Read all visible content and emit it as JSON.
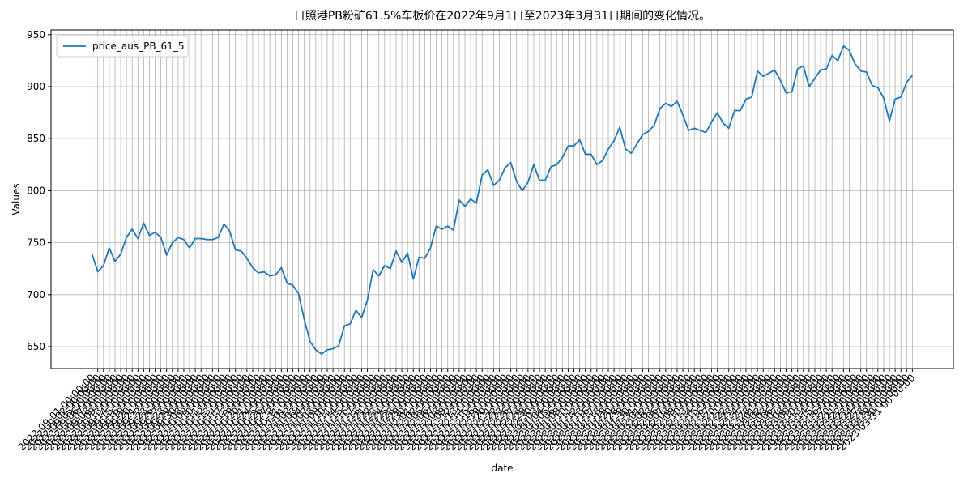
{
  "chart_data": {
    "type": "line",
    "title": "日照港PB粉矿61.5%车板价在2022年9月1日至2023年3月31日期间的变化情况。",
    "xlabel": "date",
    "ylabel": "Values",
    "categories": [
      "2022-09-01 00:00:00",
      "2022-09-02 00:00:00",
      "2022-09-05 00:00:00",
      "2022-09-06 00:00:00",
      "2022-09-07 00:00:00",
      "2022-09-08 00:00:00",
      "2022-09-09 00:00:00",
      "2022-09-13 00:00:00",
      "2022-09-14 00:00:00",
      "2022-09-15 00:00:00",
      "2022-09-16 00:00:00",
      "2022-09-19 00:00:00",
      "2022-09-20 00:00:00",
      "2022-09-21 00:00:00",
      "2022-09-22 00:00:00",
      "2022-09-23 00:00:00",
      "2022-09-26 00:00:00",
      "2022-09-27 00:00:00",
      "2022-09-28 00:00:00",
      "2022-09-29 00:00:00",
      "2022-09-30 00:00:00",
      "2022-10-08 00:00:00",
      "2022-10-09 00:00:00",
      "2022-10-10 00:00:00",
      "2022-10-11 00:00:00",
      "2022-10-12 00:00:00",
      "2022-10-13 00:00:00",
      "2022-10-14 00:00:00",
      "2022-10-17 00:00:00",
      "2022-10-18 00:00:00",
      "2022-10-19 00:00:00",
      "2022-10-20 00:00:00",
      "2022-10-21 00:00:00",
      "2022-10-24 00:00:00",
      "2022-10-25 00:00:00",
      "2022-10-26 00:00:00",
      "2022-10-27 00:00:00",
      "2022-10-28 00:00:00",
      "2022-10-31 00:00:00",
      "2022-11-01 00:00:00",
      "2022-11-02 00:00:00",
      "2022-11-03 00:00:00",
      "2022-11-04 00:00:00",
      "2022-11-07 00:00:00",
      "2022-11-08 00:00:00",
      "2022-11-09 00:00:00",
      "2022-11-10 00:00:00",
      "2022-11-11 00:00:00",
      "2022-11-14 00:00:00",
      "2022-11-15 00:00:00",
      "2022-11-16 00:00:00",
      "2022-11-17 00:00:00",
      "2022-11-18 00:00:00",
      "2022-11-21 00:00:00",
      "2022-11-22 00:00:00",
      "2022-11-23 00:00:00",
      "2022-11-24 00:00:00",
      "2022-11-25 00:00:00",
      "2022-11-28 00:00:00",
      "2022-11-29 00:00:00",
      "2022-11-30 00:00:00",
      "2022-12-01 00:00:00",
      "2022-12-02 00:00:00",
      "2022-12-05 00:00:00",
      "2022-12-06 00:00:00",
      "2022-12-07 00:00:00",
      "2022-12-08 00:00:00",
      "2022-12-09 00:00:00",
      "2022-12-12 00:00:00",
      "2022-12-13 00:00:00",
      "2022-12-14 00:00:00",
      "2022-12-15 00:00:00",
      "2022-12-16 00:00:00",
      "2022-12-19 00:00:00",
      "2022-12-20 00:00:00",
      "2022-12-21 00:00:00",
      "2022-12-22 00:00:00",
      "2022-12-23 00:00:00",
      "2022-12-26 00:00:00",
      "2022-12-27 00:00:00",
      "2022-12-28 00:00:00",
      "2022-12-29 00:00:00",
      "2022-12-30 00:00:00",
      "2023-01-03 00:00:00",
      "2023-01-04 00:00:00",
      "2023-01-05 00:00:00",
      "2023-01-06 00:00:00",
      "2023-01-09 00:00:00",
      "2023-01-10 00:00:00",
      "2023-01-11 00:00:00",
      "2023-01-12 00:00:00",
      "2023-01-13 00:00:00",
      "2023-01-16 00:00:00",
      "2023-01-17 00:00:00",
      "2023-01-18 00:00:00",
      "2023-01-19 00:00:00",
      "2023-01-20 00:00:00",
      "2023-01-28 00:00:00",
      "2023-01-29 00:00:00",
      "2023-01-30 00:00:00",
      "2023-01-31 00:00:00",
      "2023-02-01 00:00:00",
      "2023-02-02 00:00:00",
      "2023-02-03 00:00:00",
      "2023-02-06 00:00:00",
      "2023-02-07 00:00:00",
      "2023-02-08 00:00:00",
      "2023-02-09 00:00:00",
      "2023-02-10 00:00:00",
      "2023-02-13 00:00:00",
      "2023-02-14 00:00:00",
      "2023-02-15 00:00:00",
      "2023-02-16 00:00:00",
      "2023-02-17 00:00:00",
      "2023-02-20 00:00:00",
      "2023-02-21 00:00:00",
      "2023-02-22 00:00:00",
      "2023-02-23 00:00:00",
      "2023-02-24 00:00:00",
      "2023-02-27 00:00:00",
      "2023-02-28 00:00:00",
      "2023-03-01 00:00:00",
      "2023-03-02 00:00:00",
      "2023-03-03 00:00:00",
      "2023-03-06 00:00:00",
      "2023-03-07 00:00:00",
      "2023-03-08 00:00:00",
      "2023-03-09 00:00:00",
      "2023-03-10 00:00:00",
      "2023-03-13 00:00:00",
      "2023-03-14 00:00:00",
      "2023-03-15 00:00:00",
      "2023-03-16 00:00:00",
      "2023-03-17 00:00:00",
      "2023-03-20 00:00:00",
      "2023-03-21 00:00:00",
      "2023-03-22 00:00:00",
      "2023-03-23 00:00:00",
      "2023-03-24 00:00:00",
      "2023-03-27 00:00:00",
      "2023-03-28 00:00:00",
      "2023-03-29 00:00:00",
      "2023-03-30 00:00:00",
      "2023-03-31 00:00:00"
    ],
    "series": [
      {
        "name": "price_aus_PB_61_5",
        "color": "#1f77b4",
        "values": [
          739,
          722,
          728,
          745,
          732,
          739,
          755,
          763,
          754,
          769,
          757,
          760,
          755,
          738,
          750,
          755,
          753,
          745,
          754,
          754,
          753,
          753,
          755,
          768,
          761,
          743,
          742,
          735,
          726,
          721,
          722,
          718,
          719,
          726,
          711,
          709,
          701,
          676,
          655,
          647,
          643,
          647,
          648,
          651,
          670,
          672,
          685,
          678,
          695,
          724,
          718,
          728,
          725,
          742,
          731,
          740,
          715,
          736,
          735,
          745,
          766,
          763,
          766,
          762,
          791,
          785,
          792,
          788,
          815,
          820,
          805,
          810,
          822,
          827,
          809,
          800,
          808,
          825,
          810,
          810,
          823,
          825,
          832,
          843,
          843,
          849,
          835,
          835,
          825,
          829,
          840,
          848,
          861,
          840,
          836,
          845,
          854,
          857,
          863,
          879,
          884,
          881,
          886,
          873,
          858,
          860,
          858,
          856,
          866,
          875,
          865,
          860,
          877,
          877,
          888,
          890,
          915,
          910,
          913,
          916,
          906,
          894,
          895,
          917,
          920,
          900,
          908,
          916,
          917,
          930,
          925,
          939,
          935,
          922,
          915,
          914,
          901,
          899,
          889,
          867,
          888,
          890,
          904,
          911
        ]
      }
    ],
    "ylim": [
      629,
      954.5
    ],
    "yticks": [
      650,
      700,
      750,
      800,
      850,
      900,
      950
    ],
    "grid": true,
    "legend": "upper left"
  }
}
